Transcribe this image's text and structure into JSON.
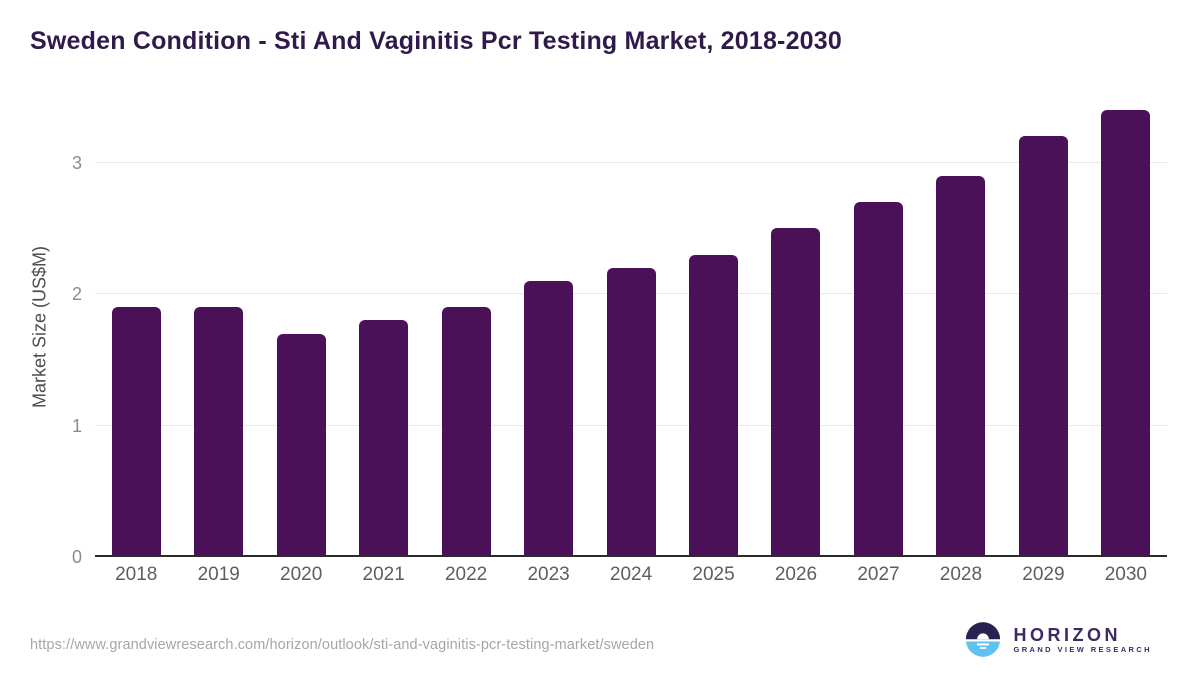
{
  "chart_data": {
    "type": "bar",
    "title": "Sweden Condition - Sti And Vaginitis Pcr Testing Market, 2018-2030",
    "categories": [
      "2018",
      "2019",
      "2020",
      "2021",
      "2022",
      "2023",
      "2024",
      "2025",
      "2026",
      "2027",
      "2028",
      "2029",
      "2030"
    ],
    "values": [
      1.9,
      1.9,
      1.7,
      1.8,
      1.9,
      2.1,
      2.2,
      2.3,
      2.5,
      2.7,
      2.9,
      3.2,
      3.4
    ],
    "xlabel": "",
    "ylabel": "Market Size (US$M)",
    "yticks": [
      0,
      1,
      2,
      3
    ],
    "ylim": [
      0,
      3.5
    ],
    "grid": "horizontal-only",
    "legend": "none",
    "bar_color": "#4a1158",
    "title_color": "#2f1a4b",
    "axis_line_color": "#2b2b2b",
    "gridline_color": "#e8e8e8"
  },
  "footer": {
    "source_url": "https://www.grandviewresearch.com/horizon/outlook/sti-and-vaginitis-pcr-testing-market/sweden",
    "logo": {
      "name": "HORIZON",
      "tagline": "GRAND VIEW RESEARCH",
      "icon_top_color": "#2b2150",
      "icon_bottom_color": "#5ec1ef",
      "text_color": "#3d2a63"
    }
  }
}
